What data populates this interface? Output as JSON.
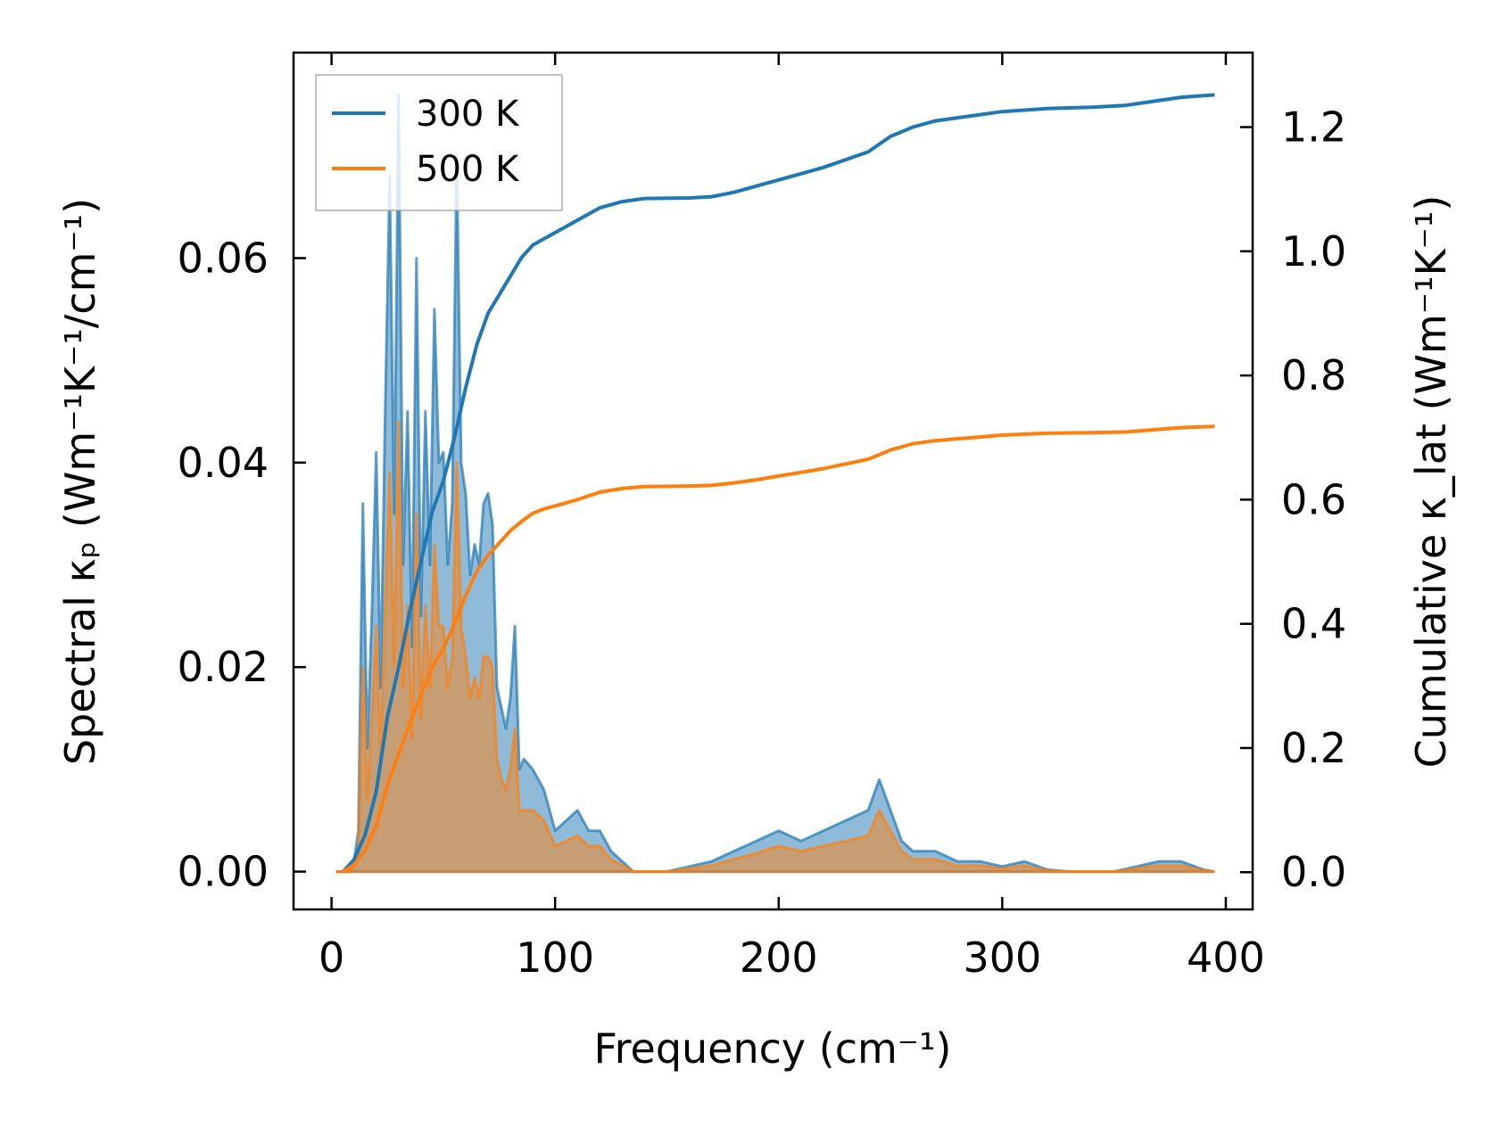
{
  "chart_data": {
    "type": "area",
    "xlabel": "Frequency (cm⁻¹)",
    "ylabel_left": "Spectral κₚ (Wm⁻¹K⁻¹/cm⁻¹)",
    "ylabel_right": "Cumulative κ_lat (Wm⁻¹K⁻¹)",
    "xlim": [
      -17,
      412
    ],
    "ylim_left": [
      -0.0037,
      0.0801
    ],
    "ylim_right": [
      -0.06,
      1.32
    ],
    "x_ticks": [
      0,
      100,
      200,
      300,
      400
    ],
    "x_tick_labels": [
      "0",
      "100",
      "200",
      "300",
      "400"
    ],
    "y_left_ticks": [
      0,
      0.02,
      0.04,
      0.06
    ],
    "y_left_tick_labels": [
      "0.00",
      "0.02",
      "0.04",
      "0.06"
    ],
    "y_right_ticks": [
      0,
      0.2,
      0.4,
      0.6,
      0.8,
      1.0,
      1.2
    ],
    "y_right_tick_labels": [
      "0.0",
      "0.2",
      "0.4",
      "0.6",
      "0.8",
      "1.0",
      "1.2"
    ],
    "legend": {
      "location": "upper-left",
      "entries": [
        "300 K",
        "500 K"
      ]
    },
    "series": [
      {
        "name": "300 K",
        "color": "#1f77b4",
        "spectral_x": [
          2,
          8,
          10,
          12,
          14,
          16,
          18,
          20,
          22,
          24,
          26,
          28,
          30,
          32,
          34,
          36,
          38,
          40,
          42,
          44,
          46,
          48,
          50,
          52,
          54,
          56,
          58,
          60,
          62,
          64,
          66,
          68,
          70,
          72,
          74,
          76,
          78,
          80,
          82,
          84,
          86,
          90,
          95,
          100,
          105,
          110,
          115,
          120,
          125,
          130,
          135,
          140,
          150,
          160,
          170,
          180,
          190,
          200,
          210,
          220,
          230,
          240,
          245,
          250,
          255,
          260,
          270,
          280,
          290,
          300,
          310,
          320,
          330,
          340,
          350,
          360,
          370,
          380,
          390,
          395
        ],
        "spectral_y": [
          0,
          0,
          0.001,
          0.004,
          0.036,
          0.012,
          0.025,
          0.041,
          0.018,
          0.045,
          0.068,
          0.035,
          0.076,
          0.03,
          0.045,
          0.022,
          0.06,
          0.025,
          0.045,
          0.03,
          0.055,
          0.04,
          0.041,
          0.03,
          0.036,
          0.07,
          0.04,
          0.037,
          0.029,
          0.032,
          0.03,
          0.036,
          0.037,
          0.034,
          0.018,
          0.016,
          0.014,
          0.017,
          0.024,
          0.01,
          0.011,
          0.01,
          0.008,
          0.004,
          0.005,
          0.006,
          0.004,
          0.004,
          0.002,
          0.001,
          0,
          0,
          0,
          0.0005,
          0.001,
          0.002,
          0.003,
          0.004,
          0.003,
          0.004,
          0.005,
          0.006,
          0.009,
          0.006,
          0.003,
          0.002,
          0.002,
          0.001,
          0.001,
          0.0005,
          0.001,
          0.0002,
          0,
          0,
          0,
          0.0005,
          0.001,
          0.001,
          0.0002,
          0
        ],
        "cumulative_x": [
          5,
          10,
          15,
          20,
          25,
          30,
          35,
          40,
          45,
          50,
          55,
          60,
          65,
          70,
          75,
          80,
          85,
          90,
          95,
          100,
          110,
          120,
          130,
          140,
          160,
          170,
          180,
          190,
          200,
          220,
          240,
          250,
          260,
          270,
          280,
          290,
          300,
          320,
          340,
          355,
          380,
          395
        ],
        "cumulative_y": [
          0,
          0.02,
          0.06,
          0.13,
          0.25,
          0.33,
          0.42,
          0.5,
          0.58,
          0.63,
          0.7,
          0.78,
          0.85,
          0.9,
          0.93,
          0.96,
          0.99,
          1.01,
          1.02,
          1.03,
          1.05,
          1.07,
          1.08,
          1.085,
          1.086,
          1.088,
          1.095,
          1.105,
          1.115,
          1.135,
          1.16,
          1.185,
          1.2,
          1.21,
          1.215,
          1.22,
          1.225,
          1.23,
          1.232,
          1.235,
          1.248,
          1.252
        ]
      },
      {
        "name": "500 K",
        "color": "#ff7f0e",
        "spectral_x": [
          2,
          8,
          10,
          12,
          14,
          16,
          18,
          20,
          22,
          24,
          26,
          28,
          30,
          32,
          34,
          36,
          38,
          40,
          42,
          44,
          46,
          48,
          50,
          52,
          54,
          56,
          58,
          60,
          62,
          64,
          66,
          68,
          70,
          72,
          74,
          76,
          78,
          80,
          82,
          84,
          86,
          90,
          95,
          100,
          105,
          110,
          115,
          120,
          125,
          130,
          135,
          140,
          150,
          160,
          170,
          180,
          190,
          200,
          210,
          220,
          230,
          240,
          245,
          250,
          255,
          260,
          270,
          280,
          290,
          300,
          310,
          320,
          330,
          340,
          350,
          360,
          370,
          380,
          390,
          395
        ],
        "spectral_y": [
          0,
          0,
          0.0005,
          0.002,
          0.02,
          0.007,
          0.015,
          0.024,
          0.011,
          0.026,
          0.039,
          0.02,
          0.044,
          0.018,
          0.026,
          0.013,
          0.035,
          0.015,
          0.026,
          0.018,
          0.032,
          0.024,
          0.024,
          0.018,
          0.021,
          0.04,
          0.024,
          0.021,
          0.017,
          0.019,
          0.017,
          0.021,
          0.021,
          0.02,
          0.011,
          0.009,
          0.008,
          0.01,
          0.014,
          0.006,
          0.006,
          0.006,
          0.005,
          0.0025,
          0.003,
          0.0035,
          0.0025,
          0.0025,
          0.0012,
          0.0006,
          0,
          0,
          0,
          0.0003,
          0.0006,
          0.0012,
          0.0018,
          0.0025,
          0.002,
          0.0025,
          0.003,
          0.0035,
          0.006,
          0.004,
          0.002,
          0.0012,
          0.0012,
          0.0006,
          0.0006,
          0.0003,
          0.0006,
          0.0001,
          0,
          0,
          0,
          0.0003,
          0.0006,
          0.0006,
          0.0001,
          0
        ],
        "cumulative_x": [
          5,
          10,
          15,
          20,
          25,
          30,
          35,
          40,
          45,
          50,
          55,
          60,
          65,
          70,
          75,
          80,
          85,
          90,
          95,
          100,
          110,
          120,
          130,
          140,
          160,
          170,
          180,
          190,
          200,
          220,
          240,
          250,
          260,
          270,
          280,
          290,
          300,
          320,
          340,
          355,
          380,
          395
        ],
        "cumulative_y": [
          0,
          0.012,
          0.035,
          0.075,
          0.14,
          0.19,
          0.24,
          0.285,
          0.33,
          0.36,
          0.4,
          0.445,
          0.485,
          0.51,
          0.53,
          0.55,
          0.565,
          0.578,
          0.585,
          0.59,
          0.6,
          0.612,
          0.618,
          0.621,
          0.622,
          0.623,
          0.627,
          0.632,
          0.638,
          0.65,
          0.665,
          0.68,
          0.69,
          0.695,
          0.698,
          0.701,
          0.704,
          0.707,
          0.708,
          0.709,
          0.716,
          0.718
        ]
      }
    ]
  }
}
